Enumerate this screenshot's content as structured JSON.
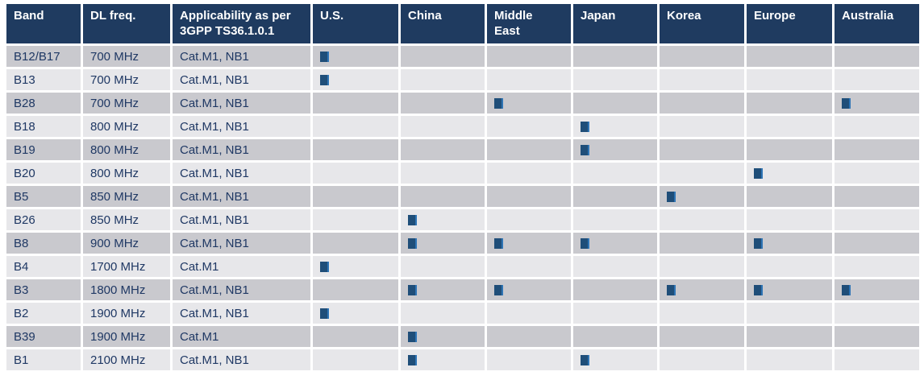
{
  "title": "LTE band regional applicability table",
  "colors": {
    "header_bg": "#1f3b60",
    "header_text": "#ffffff",
    "row_dark": "#c9c9ce",
    "row_light": "#e7e7ea",
    "text_navy": "#1f3864",
    "marker": "#1f4e79",
    "marker_edge": "#2e74b5",
    "page_bg": "#ffffff"
  },
  "table": {
    "columns": [
      {
        "key": "band",
        "label": "Band"
      },
      {
        "key": "dl-freq",
        "label": "DL freq."
      },
      {
        "key": "applicability",
        "label": "Applicability as per 3GPP TS36.1.0.1"
      },
      {
        "key": "us",
        "label": "U.S."
      },
      {
        "key": "china",
        "label": "China"
      },
      {
        "key": "middle-east",
        "label": "Middle East"
      },
      {
        "key": "japan",
        "label": "Japan"
      },
      {
        "key": "korea",
        "label": "Korea"
      },
      {
        "key": "europe",
        "label": "Europe"
      },
      {
        "key": "australia",
        "label": "Australia"
      }
    ],
    "regions": [
      "U.S.",
      "China",
      "Middle East",
      "Japan",
      "Korea",
      "Europe",
      "Australia"
    ],
    "marker_glyph": "filled-square",
    "rows": [
      {
        "band": "B12/B17",
        "dl_freq": "700 MHz",
        "applicability": "Cat.M1, NB1",
        "regions": [
          "U.S."
        ]
      },
      {
        "band": "B13",
        "dl_freq": "700 MHz",
        "applicability": "Cat.M1, NB1",
        "regions": [
          "U.S."
        ]
      },
      {
        "band": "B28",
        "dl_freq": "700 MHz",
        "applicability": "Cat.M1, NB1",
        "regions": [
          "Middle East",
          "Australia"
        ]
      },
      {
        "band": "B18",
        "dl_freq": "800 MHz",
        "applicability": "Cat.M1, NB1",
        "regions": [
          "Japan"
        ]
      },
      {
        "band": "B19",
        "dl_freq": "800 MHz",
        "applicability": "Cat.M1, NB1",
        "regions": [
          "Japan"
        ]
      },
      {
        "band": "B20",
        "dl_freq": "800 MHz",
        "applicability": "Cat.M1, NB1",
        "regions": [
          "Europe"
        ]
      },
      {
        "band": "B5",
        "dl_freq": "850 MHz",
        "applicability": "Cat.M1, NB1",
        "regions": [
          "Korea"
        ]
      },
      {
        "band": "B26",
        "dl_freq": "850 MHz",
        "applicability": "Cat.M1, NB1",
        "regions": [
          "China"
        ]
      },
      {
        "band": "B8",
        "dl_freq": "900 MHz",
        "applicability": "Cat.M1, NB1",
        "regions": [
          "China",
          "Middle East",
          "Japan",
          "Europe"
        ]
      },
      {
        "band": "B4",
        "dl_freq": "1700 MHz",
        "applicability": "Cat.M1",
        "regions": [
          "U.S."
        ]
      },
      {
        "band": "B3",
        "dl_freq": "1800 MHz",
        "applicability": "Cat.M1, NB1",
        "regions": [
          "China",
          "Middle East",
          "Korea",
          "Europe",
          "Australia"
        ]
      },
      {
        "band": "B2",
        "dl_freq": "1900 MHz",
        "applicability": "Cat.M1, NB1",
        "regions": [
          "U.S."
        ]
      },
      {
        "band": "B39",
        "dl_freq": "1900 MHz",
        "applicability": "Cat.M1",
        "regions": [
          "China"
        ]
      },
      {
        "band": "B1",
        "dl_freq": "2100 MHz",
        "applicability": "Cat.M1, NB1",
        "regions": [
          "China",
          "Japan"
        ]
      }
    ]
  }
}
